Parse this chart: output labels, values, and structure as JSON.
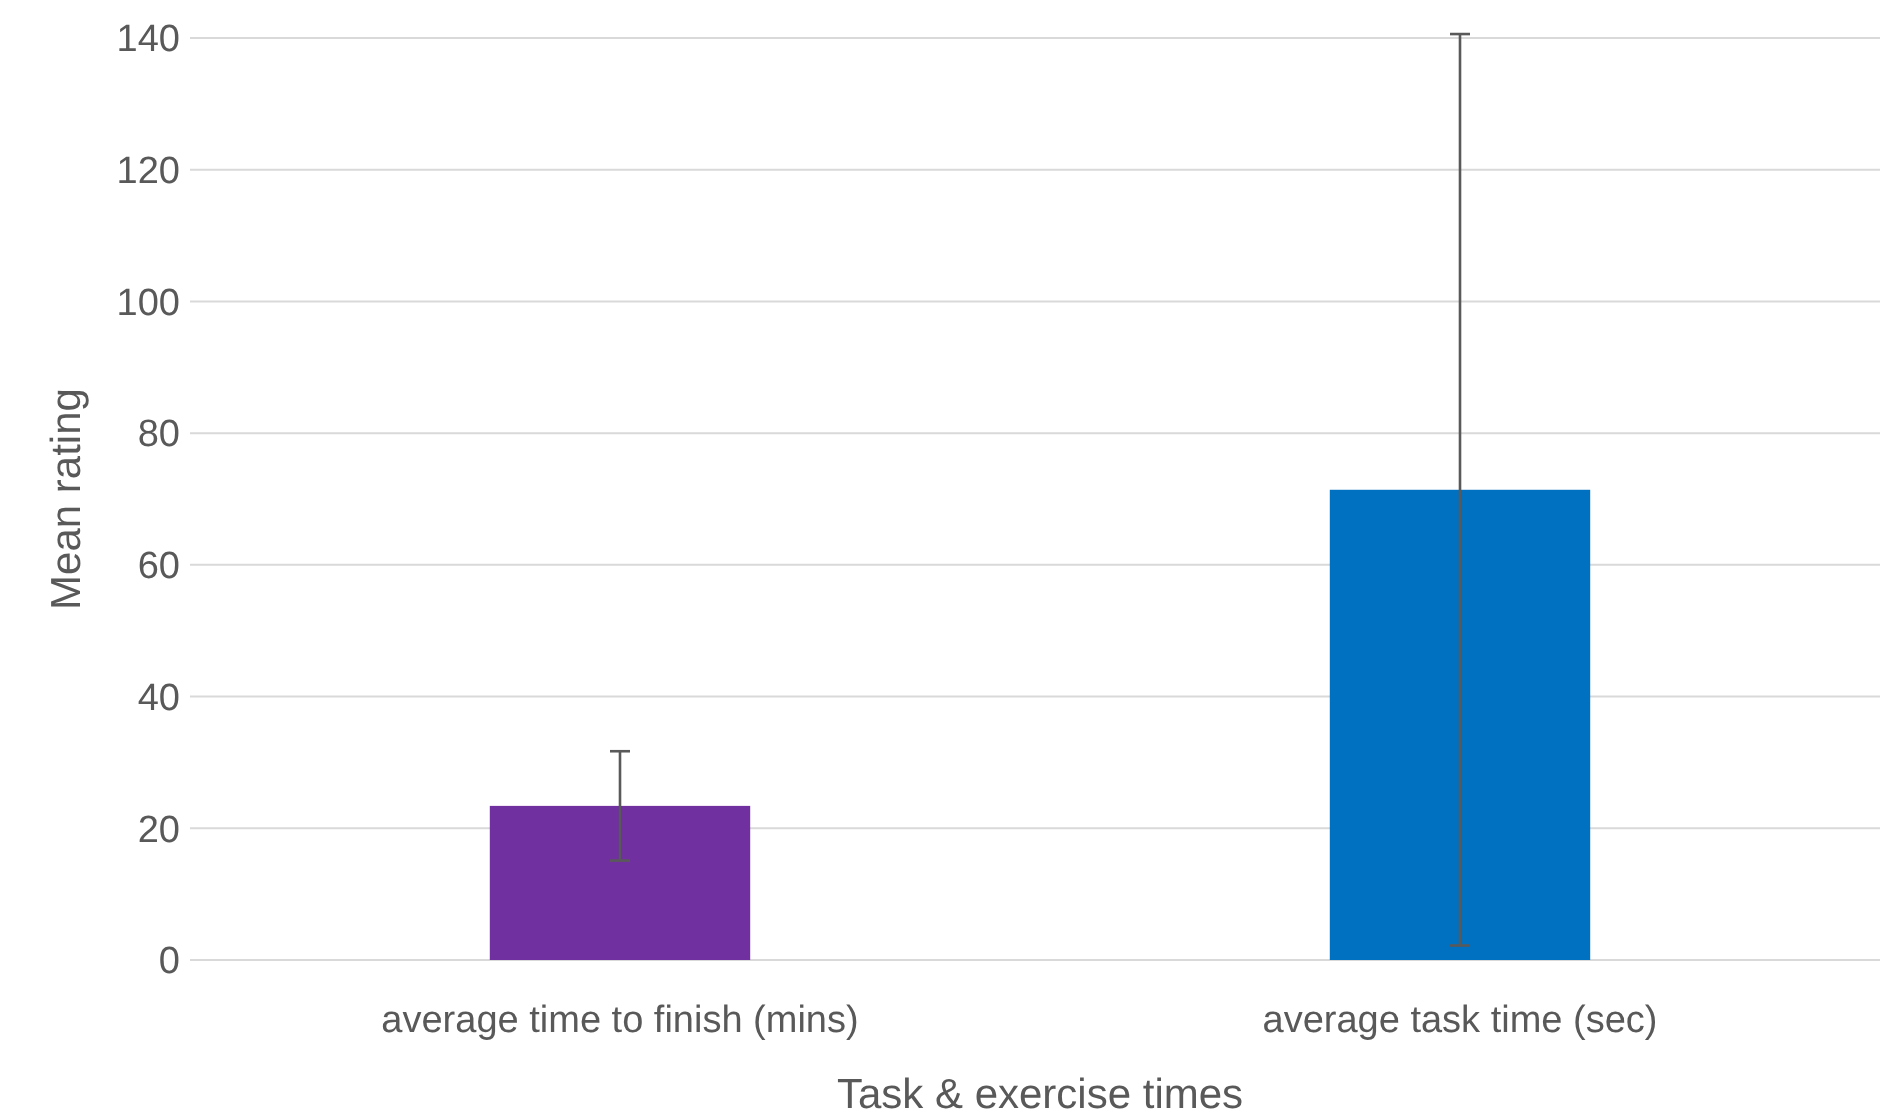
{
  "chart_data": {
    "type": "bar",
    "xlabel": "Task & exercise times",
    "ylabel": "Mean rating",
    "categories": [
      "average time to finish (mins)",
      "average task time (sec)"
    ],
    "values": [
      23.4,
      71.4
    ],
    "colors": [
      "#7030a0",
      "#0070c0"
    ],
    "errors": [
      8.3,
      69.2
    ],
    "ylim": [
      0,
      140
    ],
    "yticks": [
      0,
      20,
      40,
      60,
      80,
      100,
      120,
      140
    ],
    "grid": "y"
  }
}
